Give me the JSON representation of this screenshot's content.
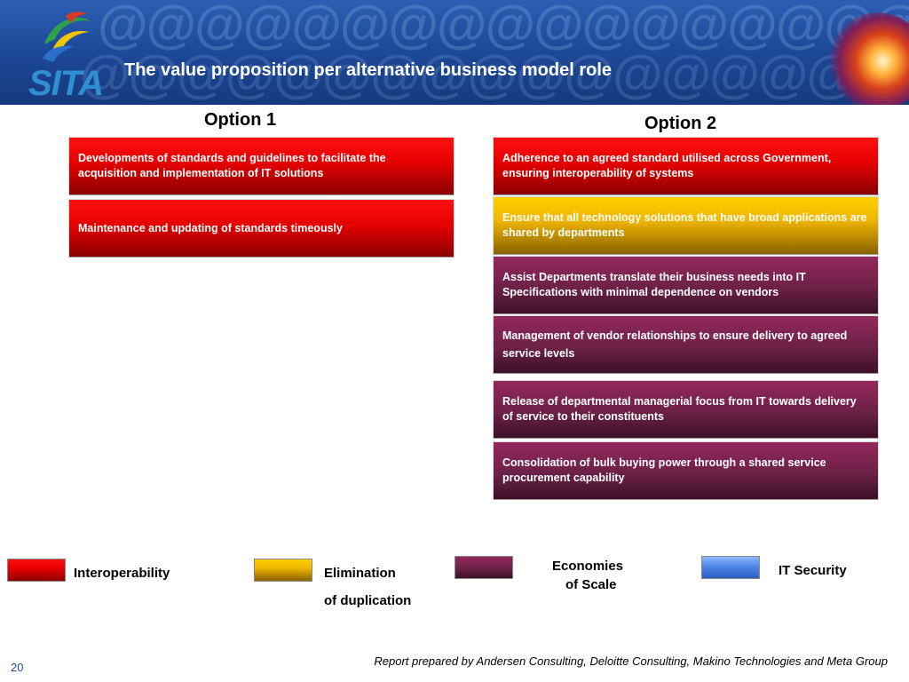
{
  "header": {
    "logo_text": "SITA",
    "title": "The value proposition per alternative business model role"
  },
  "option1": {
    "heading": "Option 1",
    "items": [
      "Developments of standards and guidelines to facilitate the acquisition and implementation of IT solutions",
      "Maintenance and updating of standards timeously"
    ]
  },
  "option2": {
    "heading": "Option 2",
    "items": [
      "Adherence to an agreed standard utilised across Government, ensuring interoperability of systems",
      "Ensure that all technology solutions that have broad applications are shared by departments",
      "Assist Departments translate their business needs into IT Specifications with minimal dependence on vendors",
      "Management of vendor relationships to ensure delivery to agreed service levels",
      "Release of departmental managerial focus from IT towards delivery of service to their constituents",
      "Consolidation of bulk buying power through a shared service procurement capability"
    ]
  },
  "legend": {
    "interoperability": "Interoperability",
    "elimination_1": "Elimination",
    "elimination_2": "of duplication",
    "economies_1": "Economies",
    "economies_2": "of Scale",
    "it_security": "IT Security"
  },
  "colors": {
    "interoperability": "#e00000",
    "elimination": "#f1b600",
    "economies": "#6c2147",
    "it_security": "#4e86e6"
  },
  "footer": {
    "page_number": "20",
    "credit": "Report prepared by Andersen Consulting, Deloitte Consulting, Makino Technologies and Meta Group"
  }
}
